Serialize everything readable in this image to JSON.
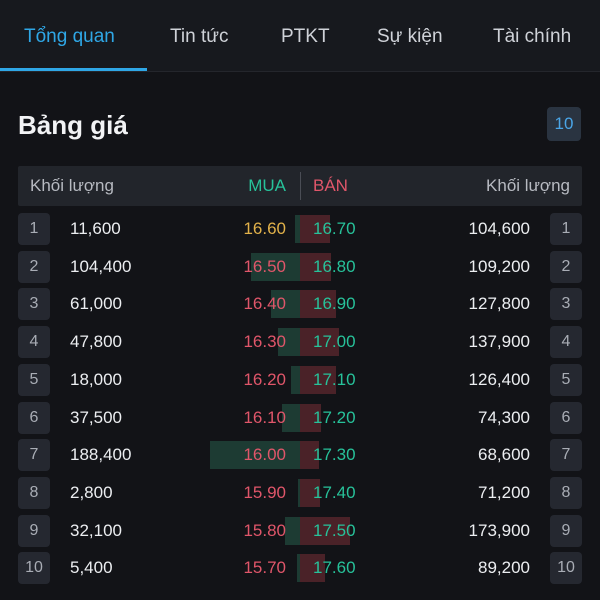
{
  "tabs": [
    {
      "label": "Tổng quan",
      "active": true
    },
    {
      "label": "Tin tức",
      "active": false
    },
    {
      "label": "PTKT",
      "active": false
    },
    {
      "label": "Sự kiện",
      "active": false
    },
    {
      "label": "Tài chính",
      "active": false
    }
  ],
  "order_book": {
    "title": "Bảng giá",
    "depth": "10",
    "header": {
      "volume_left": "Khối lượng",
      "buy": "MUA",
      "sell": "BÁN",
      "volume_right": "Khối lượng"
    },
    "colors": {
      "reference": "#e2b24a",
      "down": "#e0566a",
      "up": "#27c29a",
      "buy_bar": "#1d3b33",
      "sell_bar": "#4a2228"
    },
    "rows": [
      {
        "index": "1",
        "buy_volume": "11,600",
        "buy_price": "16.60",
        "buy_tone": "reference",
        "sell_price": "16.70",
        "sell_tone": "up",
        "sell_volume": "104,600",
        "buy_share": 0.06,
        "sell_share": 0.6
      },
      {
        "index": "2",
        "buy_volume": "104,400",
        "buy_price": "16.50",
        "buy_tone": "down",
        "sell_price": "16.80",
        "sell_tone": "up",
        "sell_volume": "109,200",
        "buy_share": 0.55,
        "sell_share": 0.63
      },
      {
        "index": "3",
        "buy_volume": "61,000",
        "buy_price": "16.40",
        "buy_tone": "down",
        "sell_price": "16.90",
        "sell_tone": "up",
        "sell_volume": "127,800",
        "buy_share": 0.32,
        "sell_share": 0.73
      },
      {
        "index": "4",
        "buy_volume": "47,800",
        "buy_price": "16.30",
        "buy_tone": "down",
        "sell_price": "17.00",
        "sell_tone": "up",
        "sell_volume": "137,900",
        "buy_share": 0.25,
        "sell_share": 0.79
      },
      {
        "index": "5",
        "buy_volume": "18,000",
        "buy_price": "16.20",
        "buy_tone": "down",
        "sell_price": "17.10",
        "sell_tone": "up",
        "sell_volume": "126,400",
        "buy_share": 0.1,
        "sell_share": 0.73
      },
      {
        "index": "6",
        "buy_volume": "37,500",
        "buy_price": "16.10",
        "buy_tone": "down",
        "sell_price": "17.20",
        "sell_tone": "up",
        "sell_volume": "74,300",
        "buy_share": 0.2,
        "sell_share": 0.43
      },
      {
        "index": "7",
        "buy_volume": "188,400",
        "buy_price": "16.00",
        "buy_tone": "down",
        "sell_price": "17.30",
        "sell_tone": "up",
        "sell_volume": "68,600",
        "buy_share": 1.0,
        "sell_share": 0.39
      },
      {
        "index": "8",
        "buy_volume": "2,800",
        "buy_price": "15.90",
        "buy_tone": "down",
        "sell_price": "17.40",
        "sell_tone": "up",
        "sell_volume": "71,200",
        "buy_share": 0.02,
        "sell_share": 0.41
      },
      {
        "index": "9",
        "buy_volume": "32,100",
        "buy_price": "15.80",
        "buy_tone": "down",
        "sell_price": "17.50",
        "sell_tone": "up",
        "sell_volume": "173,900",
        "buy_share": 0.17,
        "sell_share": 1.0
      },
      {
        "index": "10",
        "buy_volume": "5,400",
        "buy_price": "15.70",
        "buy_tone": "down",
        "sell_price": "17.60",
        "sell_tone": "up",
        "sell_volume": "89,200",
        "buy_share": 0.03,
        "sell_share": 0.51
      }
    ]
  }
}
